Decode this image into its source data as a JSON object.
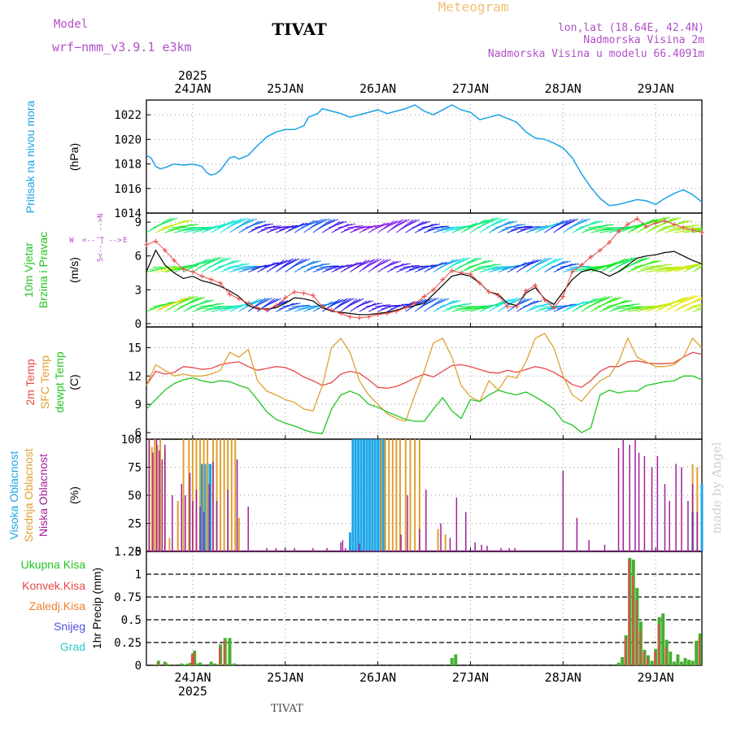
{
  "header": {
    "model_label": "Model",
    "model_name": "wrf−nmm_v3.9.1  e3km",
    "station": "TIVAT",
    "meteogram_label": "Meteogram",
    "coords": "lon,lat (18.64E, 42.4N)",
    "elevation": "Nadmorska Visina 2m",
    "model_elevation": "Nadmorska Visina u modelu 66.4091m",
    "footer_station": "TIVAT",
    "watermark": "made by Angel"
  },
  "colors": {
    "pressure": "#1ba2e6",
    "temp2m": "#e84848",
    "sfc": "#e0a030",
    "dewpt": "#21c421",
    "high_cloud": "#1ca6e8",
    "mid_cloud": "#e0a030",
    "low_cloud": "#a0209a",
    "precip_total": "#44b030",
    "precip_conv": "#e84848",
    "wind_speed": "#000000",
    "wind_gust": "#e84848"
  },
  "time_axis": {
    "year": "2025",
    "days": [
      "24JAN",
      "25JAN",
      "26JAN",
      "27JAN",
      "28JAN",
      "29JAN"
    ],
    "x_range_days": [
      -0.5,
      5.5
    ]
  },
  "chart_data": [
    {
      "type": "line",
      "panel": "pressure",
      "title": "Pritisak na nivou mora",
      "ylabel": "(hPa)",
      "ylim": [
        1014,
        1023.2
      ],
      "yticks": [
        1014,
        1016,
        1018,
        1020,
        1022
      ],
      "x": [
        -0.5,
        -0.45,
        -0.4,
        -0.35,
        -0.3,
        -0.2,
        -0.1,
        0,
        0.1,
        0.15,
        0.2,
        0.25,
        0.3,
        0.4,
        0.45,
        0.5,
        0.6,
        0.7,
        0.8,
        0.9,
        1.0,
        1.1,
        1.2,
        1.25,
        1.35,
        1.4,
        1.5,
        1.6,
        1.7,
        1.8,
        1.9,
        2.0,
        2.1,
        2.2,
        2.3,
        2.4,
        2.5,
        2.6,
        2.7,
        2.8,
        2.9,
        3.0,
        3.1,
        3.2,
        3.3,
        3.4,
        3.5,
        3.6,
        3.7,
        3.8,
        3.9,
        4.0,
        4.1,
        4.2,
        4.3,
        4.4,
        4.5,
        4.6,
        4.7,
        4.8,
        4.9,
        5.0,
        5.1,
        5.2,
        5.3,
        5.4,
        5.5
      ],
      "values": [
        1018.7,
        1018.5,
        1017.8,
        1017.6,
        1017.7,
        1018.0,
        1017.9,
        1018.0,
        1017.8,
        1017.3,
        1017.1,
        1017.2,
        1017.5,
        1018.5,
        1018.6,
        1018.4,
        1018.7,
        1019.5,
        1020.2,
        1020.6,
        1020.8,
        1020.8,
        1021.1,
        1021.8,
        1022.1,
        1022.5,
        1022.3,
        1022.1,
        1021.8,
        1022.0,
        1022.2,
        1022.4,
        1022.1,
        1022.3,
        1022.5,
        1022.8,
        1022.3,
        1022.0,
        1022.4,
        1022.8,
        1022.4,
        1022.2,
        1021.6,
        1021.8,
        1022.0,
        1021.7,
        1021.4,
        1020.6,
        1020.1,
        1020.0,
        1019.7,
        1019.3,
        1018.5,
        1017.2,
        1016.1,
        1015.2,
        1014.6,
        1014.7,
        1014.9,
        1015.1,
        1015.0,
        1014.7,
        1015.2,
        1015.6,
        1015.9,
        1015.5,
        1014.9
      ]
    },
    {
      "type": "line",
      "panel": "wind",
      "title_lines": [
        "10m Vjetar",
        "Brzina i Pravac"
      ],
      "ylabel": "(m/s)",
      "compass_labels": [
        "W",
        "E",
        "S",
        "N"
      ],
      "ylim": [
        -0.3,
        9.8
      ],
      "yticks": [
        0,
        3,
        6,
        9
      ],
      "arrow_rows": [
        1.5,
        5.0,
        8.5
      ],
      "x": [
        -0.5,
        -0.4,
        -0.3,
        -0.2,
        -0.1,
        0.0,
        0.1,
        0.2,
        0.3,
        0.4,
        0.5,
        0.6,
        0.7,
        0.8,
        0.9,
        1.0,
        1.1,
        1.2,
        1.3,
        1.4,
        1.5,
        1.6,
        1.7,
        1.8,
        1.9,
        2.0,
        2.1,
        2.2,
        2.3,
        2.4,
        2.5,
        2.6,
        2.7,
        2.8,
        2.9,
        3.0,
        3.1,
        3.2,
        3.3,
        3.4,
        3.5,
        3.6,
        3.7,
        3.8,
        3.9,
        4.0,
        4.1,
        4.2,
        4.3,
        4.4,
        4.5,
        4.6,
        4.7,
        4.8,
        4.9,
        5.0,
        5.1,
        5.2,
        5.3,
        5.4,
        5.5
      ],
      "speed": [
        4.6,
        6.5,
        5.2,
        4.5,
        4.0,
        4.2,
        3.8,
        3.6,
        3.3,
        2.9,
        2.4,
        1.6,
        1.3,
        1.3,
        1.4,
        1.8,
        2.3,
        2.2,
        2.0,
        1.4,
        1.1,
        1.0,
        0.9,
        0.8,
        0.8,
        0.9,
        1.0,
        1.2,
        1.4,
        1.6,
        1.8,
        2.6,
        3.4,
        4.2,
        4.4,
        4.2,
        3.6,
        2.8,
        2.6,
        1.8,
        1.6,
        2.7,
        3.2,
        2.2,
        1.7,
        2.8,
        3.9,
        4.6,
        4.8,
        4.6,
        4.2,
        4.6,
        5.2,
        5.8,
        6.0,
        6.1,
        6.3,
        6.4,
        6.0,
        5.6,
        5.3
      ],
      "gust": [
        7.0,
        7.3,
        6.5,
        5.6,
        4.8,
        4.6,
        4.2,
        3.9,
        3.6,
        2.6,
        2.2,
        1.8,
        1.4,
        1.2,
        1.6,
        2.3,
        2.8,
        2.7,
        2.5,
        1.5,
        1.2,
        0.9,
        0.6,
        0.5,
        0.6,
        0.8,
        0.9,
        1.1,
        1.4,
        1.8,
        2.4,
        3.0,
        3.9,
        4.7,
        4.5,
        4.4,
        3.6,
        2.8,
        2.5,
        1.5,
        1.5,
        2.9,
        3.4,
        2.1,
        1.4,
        2.4,
        4.6,
        5.2,
        5.9,
        6.5,
        7.2,
        8.2,
        8.8,
        9.3,
        8.6,
        8.9,
        9.1,
        8.8,
        8.5,
        8.3,
        8.1
      ]
    },
    {
      "type": "line",
      "panel": "temperature",
      "title_lines": [
        "2m Temp",
        "SFC Temp",
        "dewpt Temp"
      ],
      "ylabel": "(C)",
      "ylim": [
        5.3,
        17.2
      ],
      "yticks": [
        6,
        9,
        12,
        15
      ],
      "x": [
        -0.5,
        -0.4,
        -0.3,
        -0.2,
        -0.1,
        0.0,
        0.1,
        0.2,
        0.3,
        0.4,
        0.5,
        0.6,
        0.7,
        0.8,
        0.9,
        1.0,
        1.1,
        1.2,
        1.3,
        1.4,
        1.5,
        1.6,
        1.7,
        1.8,
        1.9,
        2.0,
        2.1,
        2.2,
        2.3,
        2.4,
        2.5,
        2.6,
        2.7,
        2.8,
        2.9,
        3.0,
        3.1,
        3.2,
        3.3,
        3.4,
        3.5,
        3.6,
        3.7,
        3.8,
        3.9,
        4.0,
        4.1,
        4.2,
        4.3,
        4.4,
        4.5,
        4.6,
        4.7,
        4.8,
        4.9,
        5.0,
        5.1,
        5.2,
        5.3,
        5.4,
        5.5
      ],
      "series": [
        {
          "name": "2m Temp",
          "values": [
            11.0,
            12.5,
            12.2,
            12.4,
            13.0,
            12.9,
            12.7,
            12.8,
            13.2,
            13.4,
            13.5,
            13.0,
            12.6,
            12.8,
            13.0,
            12.9,
            12.5,
            11.9,
            11.5,
            11.0,
            11.3,
            12.2,
            12.5,
            12.3,
            11.6,
            10.8,
            10.7,
            10.9,
            11.3,
            11.8,
            12.2,
            11.9,
            12.5,
            13.1,
            13.2,
            13.0,
            12.7,
            12.4,
            12.3,
            12.6,
            12.4,
            12.7,
            13.0,
            12.8,
            12.4,
            11.8,
            11.1,
            10.8,
            11.5,
            12.5,
            13.0,
            13.0,
            13.5,
            13.6,
            13.4,
            13.3,
            13.3,
            13.4,
            14.0,
            14.5,
            14.3
          ]
        },
        {
          "name": "SFC Temp",
          "values": [
            11.0,
            13.2,
            12.6,
            12.0,
            12.2,
            12.0,
            12.0,
            12.2,
            12.6,
            14.5,
            14.0,
            14.8,
            11.5,
            10.4,
            10.0,
            9.5,
            9.2,
            8.5,
            8.3,
            11.0,
            15.0,
            16.0,
            14.5,
            11.5,
            10.0,
            9.0,
            8.0,
            7.5,
            7.2,
            10.0,
            12.5,
            15.5,
            16.0,
            14.0,
            11.0,
            9.8,
            9.3,
            11.5,
            10.5,
            12.0,
            11.8,
            13.5,
            16.0,
            16.5,
            15.0,
            12.0,
            10.0,
            9.3,
            10.5,
            11.5,
            12.0,
            13.5,
            16.0,
            14.0,
            13.5,
            13.0,
            13.0,
            13.2,
            14.0,
            16.0,
            15.0
          ]
        },
        {
          "name": "dewpt Temp",
          "values": [
            8.5,
            9.5,
            10.5,
            11.2,
            11.6,
            11.8,
            11.5,
            11.3,
            11.5,
            11.4,
            11.0,
            10.7,
            9.5,
            8.2,
            7.4,
            7.0,
            6.7,
            6.3,
            6.0,
            5.9,
            8.5,
            10.0,
            10.4,
            10.0,
            9.0,
            8.7,
            8.2,
            7.8,
            7.4,
            7.2,
            7.2,
            8.5,
            9.7,
            8.3,
            7.5,
            9.5,
            9.3,
            10.0,
            10.5,
            10.2,
            10.0,
            10.3,
            9.8,
            9.2,
            8.5,
            7.2,
            6.8,
            6.0,
            6.5,
            10.0,
            10.5,
            10.2,
            10.4,
            10.4,
            11.0,
            11.2,
            11.4,
            11.5,
            12.0,
            12.0,
            11.6
          ]
        }
      ]
    },
    {
      "type": "bar",
      "panel": "clouds",
      "title_lines": [
        "Visoka Oblacnost",
        "Srednja Oblacnost",
        "Niska  Oblacnost"
      ],
      "ylabel": "(%)",
      "ylim": [
        0,
        100
      ],
      "yticks": [
        0,
        25,
        50,
        75,
        100
      ],
      "series": [
        {
          "name": "Visoka Oblacnost",
          "x": [
            0.1,
            0.13,
            0.16,
            0.19,
            1.7,
            1.73,
            1.76,
            1.79,
            1.82,
            1.85,
            1.88,
            1.91,
            1.94,
            1.97,
            2.0,
            2.03,
            2.06,
            5.4,
            5.5
          ],
          "values": [
            78,
            78,
            78,
            78,
            17,
            100,
            100,
            100,
            100,
            100,
            100,
            100,
            100,
            100,
            100,
            100,
            100,
            35,
            60
          ]
        },
        {
          "name": "Srednja Oblacnost",
          "x": [
            -0.47,
            -0.44,
            -0.41,
            -0.38,
            -0.35,
            -0.3,
            -0.25,
            -0.16,
            -0.1,
            -0.04,
            0.0,
            0.04,
            0.08,
            0.12,
            0.16,
            0.22,
            0.26,
            0.3,
            0.34,
            0.38,
            0.42,
            0.46,
            0.5,
            2.04,
            2.08,
            2.12,
            2.16,
            2.2,
            2.24,
            2.3,
            2.35,
            2.4,
            2.45,
            2.65,
            2.73,
            5.4,
            5.45
          ],
          "values": [
            100,
            93,
            100,
            95,
            100,
            90,
            12,
            45,
            100,
            100,
            100,
            100,
            100,
            100,
            100,
            100,
            100,
            100,
            100,
            100,
            100,
            100,
            30,
            100,
            100,
            100,
            100,
            100,
            100,
            100,
            100,
            100,
            100,
            20,
            15,
            78,
            75
          ]
        },
        {
          "name": "Niska  Oblacnost",
          "x": [
            -0.47,
            -0.43,
            -0.39,
            -0.36,
            -0.33,
            -0.3,
            -0.22,
            -0.12,
            -0.08,
            -0.03,
            0.0,
            0.04,
            0.08,
            0.12,
            0.18,
            0.22,
            0.26,
            0.38,
            0.48,
            0.6,
            0.8,
            0.9,
            1.1,
            1.3,
            1.45,
            1.6,
            1.62,
            1.65,
            1.8,
            2.25,
            2.32,
            2.45,
            2.52,
            2.68,
            2.78,
            2.85,
            2.95,
            3.05,
            3.12,
            3.18,
            3.33,
            3.42,
            3.48,
            4.0,
            4.15,
            4.28,
            4.45,
            4.6,
            4.65,
            4.72,
            4.78,
            4.82,
            4.88,
            4.96,
            5.02,
            5.1,
            5.15,
            5.22,
            5.28,
            5.35,
            5.4,
            5.45
          ],
          "values": [
            100,
            88,
            100,
            90,
            82,
            95,
            50,
            60,
            50,
            70,
            45,
            55,
            40,
            35,
            60,
            80,
            45,
            55,
            82,
            40,
            3,
            3,
            3,
            3,
            3,
            8,
            10,
            3,
            7,
            15,
            50,
            20,
            55,
            25,
            12,
            48,
            35,
            8,
            6,
            5,
            3,
            3,
            3,
            72,
            30,
            10,
            6,
            92,
            100,
            95,
            100,
            88,
            85,
            75,
            85,
            60,
            45,
            78,
            75,
            45,
            60,
            35
          ]
        }
      ]
    },
    {
      "type": "bar",
      "panel": "precipitation",
      "legend": [
        "Ukupna  Kisa",
        "Konvek.Kisa",
        "Zaledj.Kisa",
        "Snijeg",
        "Grad"
      ],
      "ylabel": "1hr Precip (mm)",
      "ylim": [
        0,
        1.25
      ],
      "yticks": [
        "0",
        "0.25",
        "0.5",
        "0.75",
        "1",
        "1.25"
      ],
      "x": [
        -0.4,
        -0.37,
        -0.3,
        -0.28,
        -0.25,
        -0.12,
        -0.08,
        -0.05,
        -0.02,
        0.0,
        0.02,
        0.04,
        0.08,
        0.2,
        0.24,
        0.3,
        0.35,
        0.4,
        0.45,
        2.8,
        2.84,
        4.6,
        4.64,
        4.68,
        4.72,
        4.76,
        4.8,
        4.84,
        4.88,
        4.92,
        4.96,
        5.0,
        5.04,
        5.08,
        5.12,
        5.16,
        5.2,
        5.24,
        5.28,
        5.32,
        5.36,
        5.4,
        5.44,
        5.48
      ],
      "total": [
        0.01,
        0.05,
        0.04,
        0.02,
        0.01,
        0.02,
        0.01,
        0.02,
        0.03,
        0.13,
        0.16,
        0.02,
        0.03,
        0.04,
        0.02,
        0.23,
        0.3,
        0.3,
        0.02,
        0.08,
        0.12,
        0.03,
        0.09,
        0.33,
        1.18,
        1.16,
        0.85,
        0.48,
        0.17,
        0.11,
        0.05,
        0.18,
        0.53,
        0.57,
        0.28,
        0.15,
        0.04,
        0.12,
        0.04,
        0.08,
        0.06,
        0.05,
        0.27,
        0.35
      ],
      "convective": [
        0.0,
        0.03,
        0.02,
        0.0,
        0.0,
        0.0,
        0.0,
        0.0,
        0.0,
        0.11,
        0.14,
        0.0,
        0.0,
        0.0,
        0.0,
        0.2,
        0.27,
        0.0,
        0.0,
        0.0,
        0.0,
        0.0,
        0.0,
        0.3,
        1.15,
        0.98,
        0.72,
        0.38,
        0.15,
        0.08,
        0.0,
        0.15,
        0.45,
        0.0,
        0.2,
        0.0,
        0.0,
        0.0,
        0.0,
        0.0,
        0.0,
        0.0,
        0.0,
        0.3
      ]
    }
  ]
}
